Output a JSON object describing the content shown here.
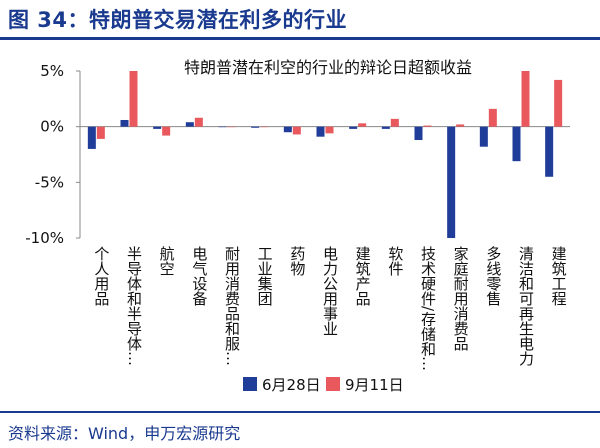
{
  "header": {
    "title": "图 34：特朗普交易潜在利多的行业"
  },
  "footer": {
    "source": "资料来源：Wind，申万宏源研究"
  },
  "colors": {
    "series1": "#1f3d99",
    "series2": "#e8585c",
    "title": "#1a3a8f",
    "axis": "#888888"
  },
  "chart_data": {
    "type": "bar",
    "title": "特朗普潜在利空的行业的辩论日超额收益",
    "xlabel": "",
    "ylabel": "",
    "ylim": [
      -10,
      5
    ],
    "yticks": [
      5,
      0,
      -5,
      -10
    ],
    "ytick_labels": [
      "5%",
      "0%",
      "-5%",
      "-10%"
    ],
    "grid": false,
    "legend_position": "bottom",
    "categories": [
      "个人用品",
      "半导体和半导体…",
      "航空",
      "电气设备",
      "耐用消费品和服…",
      "工业集团",
      "药物",
      "电力公用事业",
      "建筑产品",
      "软件",
      "技术硬件/存储和…",
      "家庭耐用消费品",
      "多线零售",
      "清洁和可再生电力",
      "建筑工程"
    ],
    "series": [
      {
        "name": "6月28日",
        "values": [
          -2.0,
          0.6,
          -0.2,
          0.4,
          0.0,
          -0.1,
          -0.5,
          -0.9,
          -0.2,
          -0.2,
          -1.2,
          -10.0,
          -1.8,
          -3.1,
          -4.5
        ]
      },
      {
        "name": "9月11日",
        "values": [
          -1.1,
          5.0,
          -0.8,
          0.8,
          0.0,
          0.0,
          -0.7,
          -0.6,
          0.3,
          0.7,
          0.1,
          0.2,
          1.6,
          5.0,
          4.2
        ]
      }
    ]
  }
}
